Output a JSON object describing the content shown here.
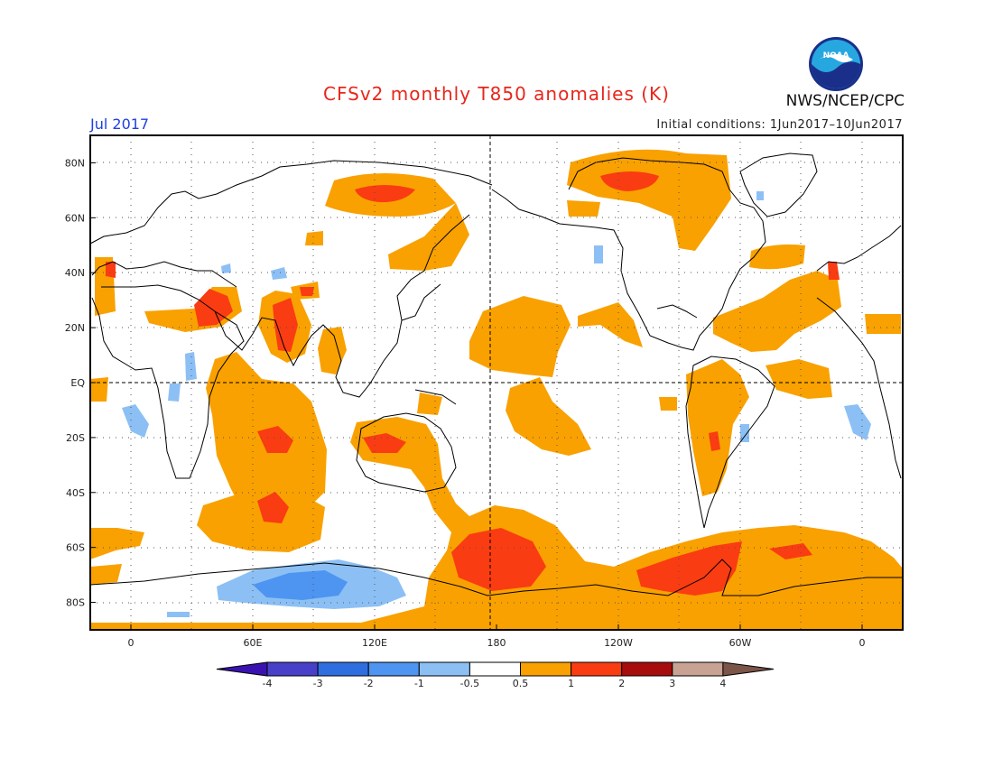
{
  "header": {
    "title": "CFSv2 monthly T850 anomalies (K)",
    "month": "Jul 2017",
    "initial_conditions": "Initial conditions: 1Jun2017–10Jun2017",
    "agency": "NWS/NCEP/CPC",
    "logo_text": "NOAA"
  },
  "axes": {
    "lat_labels": [
      "80N",
      "60N",
      "40N",
      "20N",
      "EQ",
      "20S",
      "40S",
      "60S",
      "80S"
    ],
    "lat_values": [
      80,
      60,
      40,
      20,
      0,
      -20,
      -40,
      -60,
      -80
    ],
    "lon_labels": [
      "0",
      "60E",
      "120E",
      "180",
      "120W",
      "60W",
      "0"
    ],
    "lon_values": [
      0,
      60,
      120,
      180,
      240,
      300,
      360
    ],
    "lon_range": [
      -20,
      380
    ],
    "lat_range": [
      -90,
      90
    ]
  },
  "colorbar": {
    "labels": [
      "-4",
      "-3",
      "-2",
      "-1",
      "-0.5",
      "0.5",
      "1",
      "2",
      "3",
      "4"
    ],
    "colors": [
      "#3a12b0",
      "#4840c8",
      "#2f6ee0",
      "#4d95f0",
      "#8cc0f5",
      "#ffffff",
      "#f9a100",
      "#fa3c12",
      "#a80d0d",
      "#c8a292",
      "#7a5548"
    ]
  },
  "colors": {
    "orange": "#f9a100",
    "red": "#fa3c12",
    "blue_light": "#8cc0f5",
    "blue_mid": "#4d95f0",
    "coast": "#000000"
  }
}
